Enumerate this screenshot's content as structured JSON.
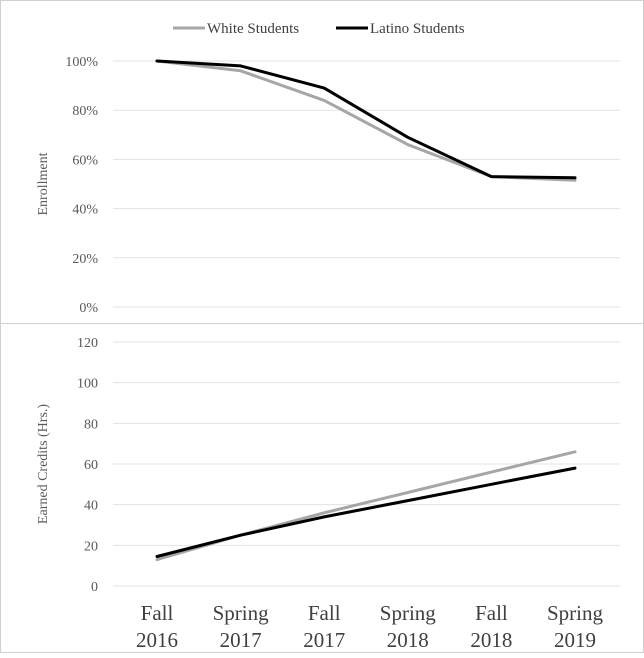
{
  "legend": [
    {
      "name": "White Students",
      "color": "#a6a6a6"
    },
    {
      "name": "Latino Students",
      "color": "#000000"
    }
  ],
  "x_labels": [
    {
      "line1": "Fall",
      "line2": "2016"
    },
    {
      "line1": "Spring",
      "line2": "2017"
    },
    {
      "line1": "Fall",
      "line2": "2017"
    },
    {
      "line1": "Spring",
      "line2": "2018"
    },
    {
      "line1": "Fall",
      "line2": "2018"
    },
    {
      "line1": "Spring",
      "line2": "2019"
    }
  ],
  "chart_data": [
    {
      "type": "line",
      "ylabel": "Enrollment",
      "ylim": [
        0,
        100
      ],
      "yticks": [
        "0%",
        "20%",
        "40%",
        "60%",
        "80%",
        "100%"
      ],
      "grid": true,
      "legend_position": "top-center",
      "categories": [
        "Fall 2016",
        "Spring 2017",
        "Fall 2017",
        "Spring 2018",
        "Fall 2018",
        "Spring 2019"
      ],
      "series": [
        {
          "name": "White Students",
          "color": "#a6a6a6",
          "values": [
            100,
            96,
            84,
            66,
            53,
            51.5
          ]
        },
        {
          "name": "Latino Students",
          "color": "#000000",
          "values": [
            100,
            98,
            89,
            69,
            53,
            52.5
          ]
        }
      ]
    },
    {
      "type": "line",
      "ylabel": "Earned Credits (Hrs.)",
      "ylim": [
        0,
        120
      ],
      "yticks": [
        "0",
        "20",
        "40",
        "60",
        "80",
        "100",
        "120"
      ],
      "grid": true,
      "categories": [
        "Fall 2016",
        "Spring 2017",
        "Fall 2017",
        "Spring 2018",
        "Fall 2018",
        "Spring 2019"
      ],
      "series": [
        {
          "name": "White Students",
          "color": "#a6a6a6",
          "values": [
            13,
            25,
            36,
            46,
            56,
            66
          ]
        },
        {
          "name": "Latino Students",
          "color": "#000000",
          "values": [
            14.5,
            25,
            34,
            42,
            50,
            58
          ]
        }
      ]
    }
  ]
}
